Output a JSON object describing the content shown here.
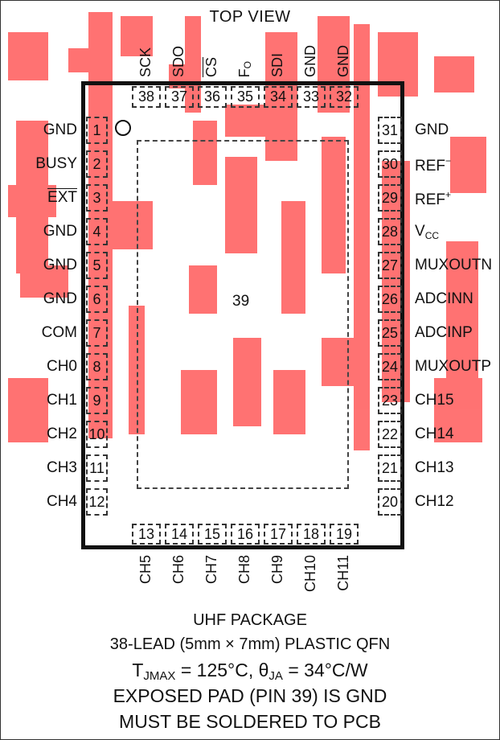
{
  "title": "TOP VIEW",
  "pad_label": "39",
  "pins_left": [
    {
      "num": "1",
      "name": "GND"
    },
    {
      "num": "2",
      "name": "BUSY"
    },
    {
      "num": "3",
      "name": "EXT"
    },
    {
      "num": "4",
      "name": "GND"
    },
    {
      "num": "5",
      "name": "GND"
    },
    {
      "num": "6",
      "name": "GND"
    },
    {
      "num": "7",
      "name": "COM"
    },
    {
      "num": "8",
      "name": "CH0"
    },
    {
      "num": "9",
      "name": "CH1"
    },
    {
      "num": "10",
      "name": "CH2"
    },
    {
      "num": "11",
      "name": "CH3"
    },
    {
      "num": "12",
      "name": "CH4"
    }
  ],
  "pins_right": [
    {
      "num": "31",
      "name": "GND"
    },
    {
      "num": "30",
      "name": "REF",
      "sup": "−"
    },
    {
      "num": "29",
      "name": "REF",
      "sup": "+"
    },
    {
      "num": "28",
      "name": "V",
      "sub": "CC"
    },
    {
      "num": "27",
      "name": "MUXOUTN"
    },
    {
      "num": "26",
      "name": "ADCINN"
    },
    {
      "num": "25",
      "name": "ADCINP"
    },
    {
      "num": "24",
      "name": "MUXOUTP"
    },
    {
      "num": "23",
      "name": "CH15"
    },
    {
      "num": "22",
      "name": "CH14"
    },
    {
      "num": "21",
      "name": "CH13"
    },
    {
      "num": "20",
      "name": "CH12"
    }
  ],
  "pins_top": [
    {
      "num": "38",
      "name": "SCK"
    },
    {
      "num": "37",
      "name": "SDO"
    },
    {
      "num": "36",
      "name": "CS"
    },
    {
      "num": "35",
      "name": "F",
      "sub": "O"
    },
    {
      "num": "34",
      "name": "SDI"
    },
    {
      "num": "33",
      "name": "GND"
    },
    {
      "num": "32",
      "name": "GND"
    }
  ],
  "pins_bottom": [
    {
      "num": "13",
      "name": "CH5"
    },
    {
      "num": "14",
      "name": "CH6"
    },
    {
      "num": "15",
      "name": "CH7"
    },
    {
      "num": "16",
      "name": "CH8"
    },
    {
      "num": "17",
      "name": "CH9"
    },
    {
      "num": "18",
      "name": "CH10"
    },
    {
      "num": "19",
      "name": "CH11"
    }
  ],
  "caption": {
    "line1": "UHF PACKAGE",
    "line2": "38-LEAD (5mm × 7mm) PLASTIC QFN",
    "line3": {
      "t": "T",
      "t_sub": "JMAX",
      "t_rest": " = 125°C, ",
      "theta": "θ",
      "theta_sub": "JA",
      "theta_rest": " = 34°C/W"
    },
    "line4": "EXPOSED PAD (PIN 39) IS GND",
    "line5": "MUST BE SOLDERED TO PCB"
  },
  "colors": {
    "watermark": "#ff5a5a",
    "ink": "#111111"
  }
}
